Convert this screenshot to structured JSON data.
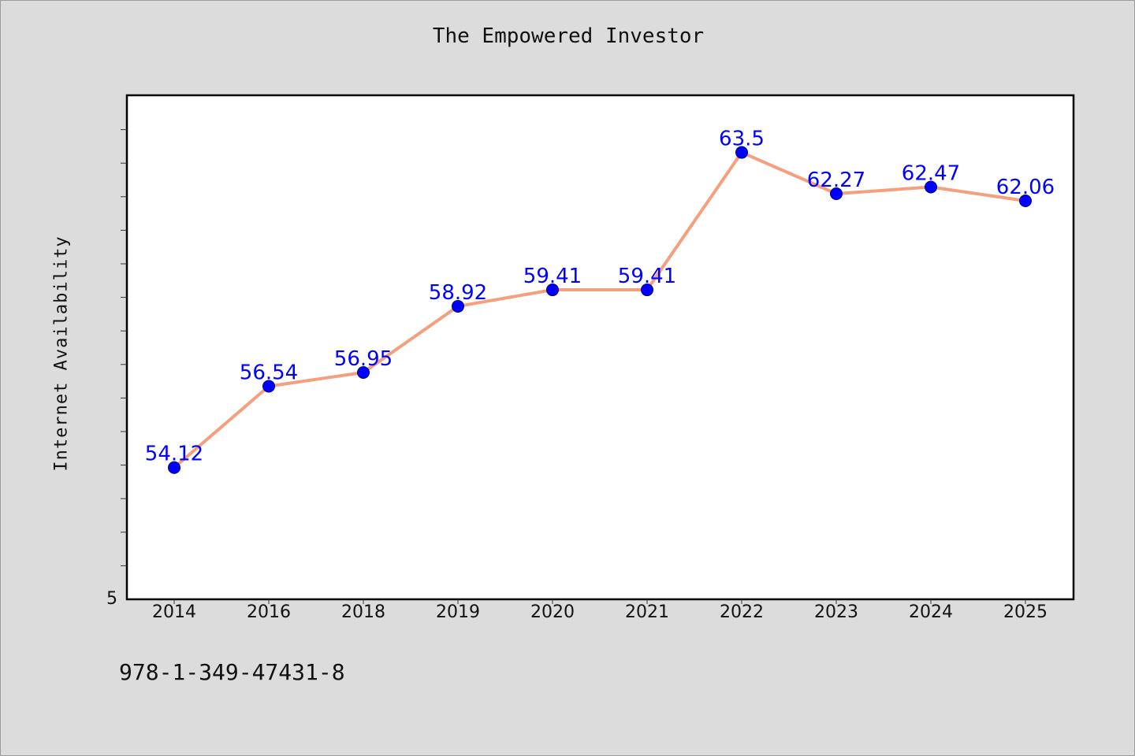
{
  "chart_data": {
    "type": "line",
    "title": "The Empowered Investor",
    "xlabel": "",
    "ylabel": "Internet Availability",
    "categories": [
      "2014",
      "2016",
      "2018",
      "2019",
      "2020",
      "2021",
      "2022",
      "2023",
      "2024",
      "2025"
    ],
    "values": [
      54.12,
      56.54,
      56.95,
      58.92,
      59.41,
      59.41,
      63.5,
      62.27,
      62.47,
      62.06
    ],
    "data_labels": [
      "54.12",
      "56.54",
      "56.95",
      "58.92",
      "59.41",
      "59.41",
      "63.5",
      "62.27",
      "62.47",
      "62.06"
    ],
    "y_tick_labels": [
      "5"
    ],
    "ylim": [
      50.2,
      65.2
    ],
    "grid": false,
    "legend": "none",
    "colors": {
      "line": "#f4a07e",
      "marker": "#0000ff",
      "data_label": "#0000ff"
    }
  },
  "footer": {
    "code": "978-1-349-47431-8"
  }
}
